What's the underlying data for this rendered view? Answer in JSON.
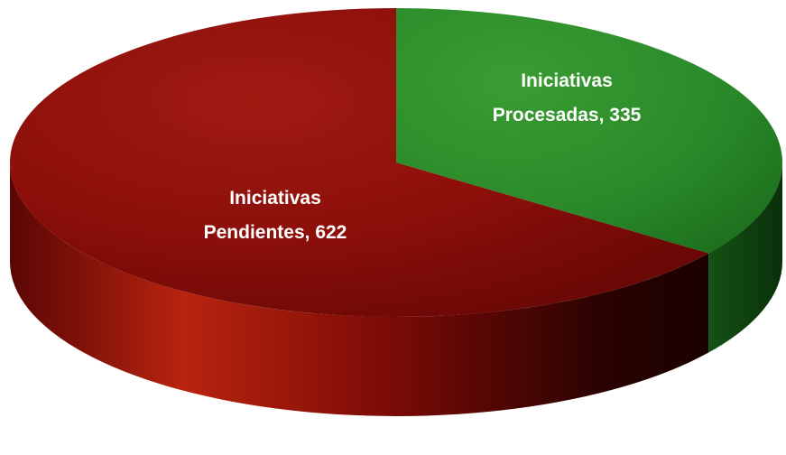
{
  "chart_data": {
    "type": "pie",
    "style": "3d",
    "title": "",
    "slices": [
      {
        "label_line1": "Iniciativas",
        "label_line2": "Procesadas, 335",
        "name": "Iniciativas Procesadas",
        "value": 335,
        "color": "#2a8a2a"
      },
      {
        "label_line1": "Iniciativas",
        "label_line2": "Pendientes, 622",
        "name": "Iniciativas Pendientes",
        "value": 622,
        "color": "#8c0f0a"
      }
    ],
    "legend": "none"
  }
}
